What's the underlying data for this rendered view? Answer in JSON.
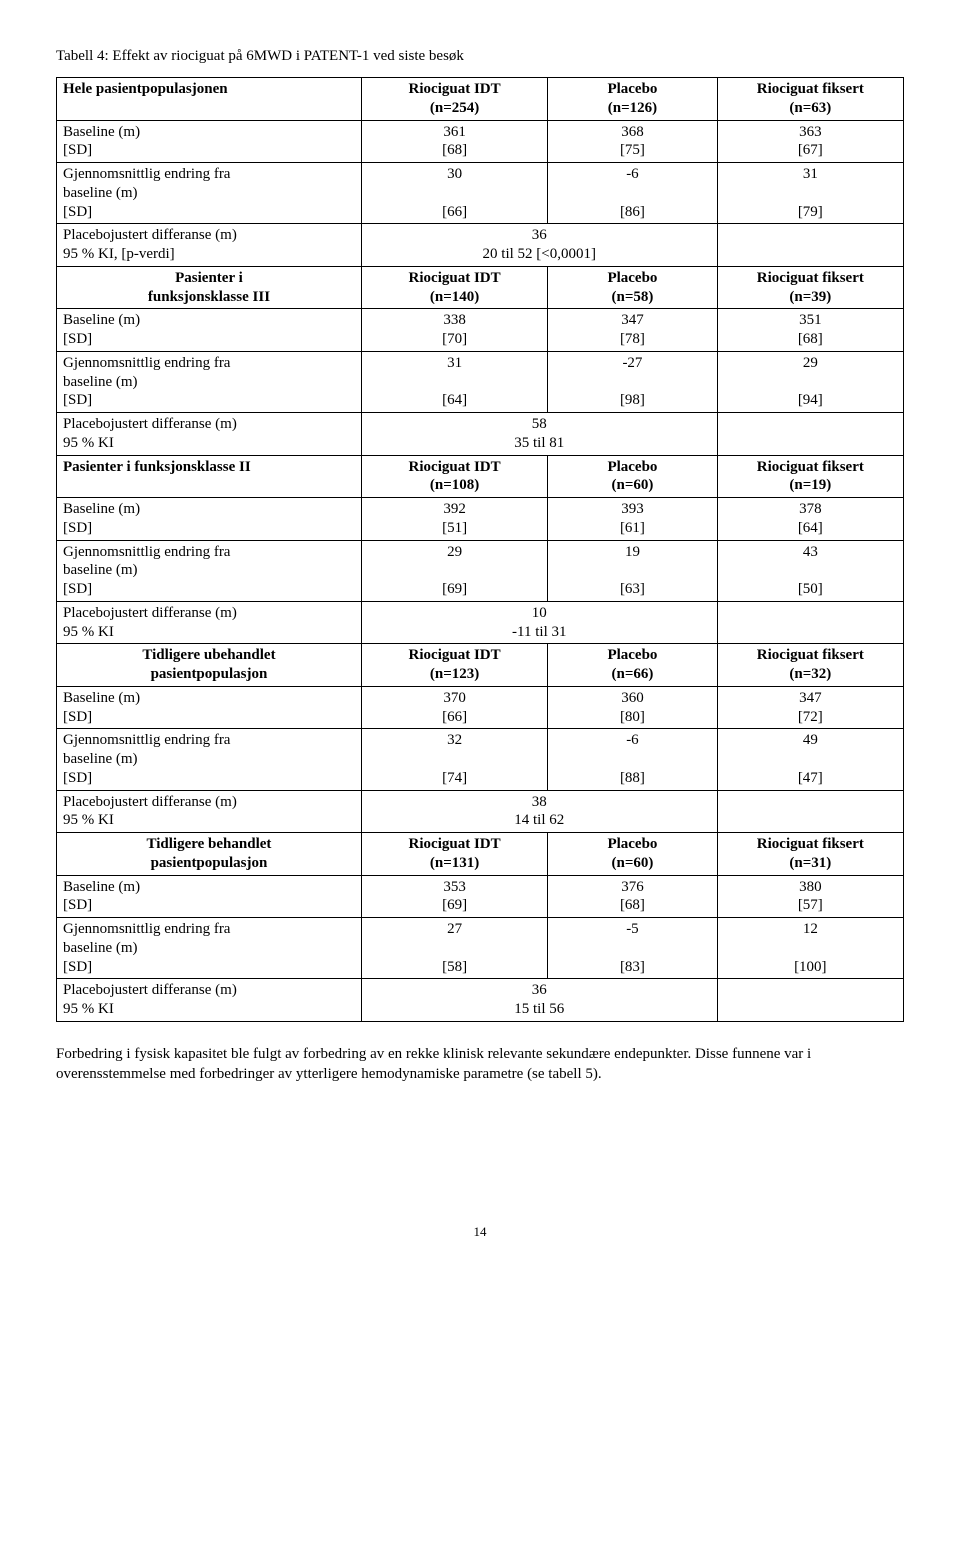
{
  "title": "Tabell 4: Effekt av riociguat på 6MWD i PATENT-1 ved siste besøk",
  "sections": [
    {
      "header": {
        "label": "Hele pasientpopulasjonen",
        "labelBold": true,
        "labelCenter": false,
        "c1_a": "Riociguat IDT",
        "c1_b": "(n=254)",
        "c2_a": "Placebo",
        "c2_b": "(n=126)",
        "c3_a": "Riociguat fiksert",
        "c3_b": "(n=63)"
      },
      "baseline": {
        "label_a": "Baseline (m)",
        "label_b": "[SD]",
        "c1_a": "361",
        "c1_b": "[68]",
        "c2_a": "368",
        "c2_b": "[75]",
        "c3_a": "363",
        "c3_b": "[67]"
      },
      "change": {
        "label_a": "Gjennomsnittlig endring fra",
        "label_b": "baseline (m)",
        "label_c": "[SD]",
        "c1_a": "30",
        "c1_b": "[66]",
        "c2_a": "-6",
        "c2_b": "[86]",
        "c3_a": "31",
        "c3_b": "[79]"
      },
      "diff": {
        "label_a": "Placebojustert differanse (m)",
        "label_b": "95 % KI, [p-verdi]",
        "m_a": "36",
        "m_b": "20 til 52 [<0,0001]"
      }
    },
    {
      "header": {
        "label_a": "Pasienter i",
        "label_b": "funksjonsklasse III",
        "labelBold": true,
        "labelCenter": true,
        "c1_a": "Riociguat IDT",
        "c1_b": "(n=140)",
        "c2_a": "Placebo",
        "c2_b": "(n=58)",
        "c3_a": "Riociguat fiksert",
        "c3_b": "(n=39)"
      },
      "baseline": {
        "label_a": "Baseline (m)",
        "label_b": "[SD]",
        "c1_a": "338",
        "c1_b": "[70]",
        "c2_a": "347",
        "c2_b": "[78]",
        "c3_a": "351",
        "c3_b": "[68]"
      },
      "change": {
        "label_a": "Gjennomsnittlig endring fra",
        "label_b": "baseline (m)",
        "label_c": "[SD]",
        "c1_a": "31",
        "c1_b": "[64]",
        "c2_a": "-27",
        "c2_b": "[98]",
        "c3_a": "29",
        "c3_b": "[94]"
      },
      "diff": {
        "label_a": "Placebojustert differanse (m)",
        "label_b": "95 % KI",
        "m_a": "58",
        "m_b": "35 til 81"
      }
    },
    {
      "header": {
        "label": "Pasienter i funksjonsklasse II",
        "labelBold": true,
        "labelCenter": false,
        "c1_a": "Riociguat IDT",
        "c1_b": "(n=108)",
        "c2_a": "Placebo",
        "c2_b": "(n=60)",
        "c3_a": "Riociguat fiksert",
        "c3_b": "(n=19)"
      },
      "baseline": {
        "label_a": "Baseline (m)",
        "label_b": "[SD]",
        "c1_a": "392",
        "c1_b": "[51]",
        "c2_a": "393",
        "c2_b": "[61]",
        "c3_a": "378",
        "c3_b": "[64]"
      },
      "change": {
        "label_a": "Gjennomsnittlig endring fra",
        "label_b": "baseline (m)",
        "label_c": "[SD]",
        "c1_a": "29",
        "c1_b": "[69]",
        "c2_a": "19",
        "c2_b": "[63]",
        "c3_a": "43",
        "c3_b": "[50]"
      },
      "diff": {
        "label_a": "Placebojustert differanse (m)",
        "label_b": "95 % KI",
        "m_a": "10",
        "m_b": "-11 til 31"
      }
    },
    {
      "header": {
        "label_a": "Tidligere ubehandlet",
        "label_b": "pasientpopulasjon",
        "labelBold": true,
        "labelCenter": true,
        "c1_a": "Riociguat IDT",
        "c1_b": "(n=123)",
        "c2_a": "Placebo",
        "c2_b": "(n=66)",
        "c3_a": "Riociguat fiksert",
        "c3_b": "(n=32)"
      },
      "baseline": {
        "label_a": "Baseline (m)",
        "label_b": "[SD]",
        "c1_a": "370",
        "c1_b": "[66]",
        "c2_a": "360",
        "c2_b": "[80]",
        "c3_a": "347",
        "c3_b": "[72]"
      },
      "change": {
        "label_a": "Gjennomsnittlig endring fra",
        "label_b": "baseline (m)",
        "label_c": "[SD]",
        "c1_a": "32",
        "c1_b": "[74]",
        "c2_a": "-6",
        "c2_b": "[88]",
        "c3_a": "49",
        "c3_b": "[47]"
      },
      "diff": {
        "label_a": "Placebojustert differanse (m)",
        "label_b": "95 % KI",
        "m_a": "38",
        "m_b": "14 til 62"
      }
    },
    {
      "header": {
        "label_a": "Tidligere behandlet",
        "label_b": "pasientpopulasjon",
        "labelBold": true,
        "labelCenter": true,
        "c1_a": "Riociguat IDT",
        "c1_b": "(n=131)",
        "c2_a": "Placebo",
        "c2_b": "(n=60)",
        "c3_a": "Riociguat fiksert",
        "c3_b": "(n=31)"
      },
      "baseline": {
        "label_a": "Baseline (m)",
        "label_b": "[SD]",
        "c1_a": "353",
        "c1_b": "[69]",
        "c2_a": "376",
        "c2_b": "[68]",
        "c3_a": "380",
        "c3_b": "[57]"
      },
      "change": {
        "label_a": "Gjennomsnittlig endring fra",
        "label_b": "baseline (m)",
        "label_c": "[SD]",
        "c1_a": "27",
        "c1_b": "[58]",
        "c2_a": "-5",
        "c2_b": "[83]",
        "c3_a": "12",
        "c3_b": "[100]"
      },
      "diff": {
        "label_a": "Placebojustert differanse (m)",
        "label_b": "95 % KI",
        "m_a": "36",
        "m_b": "15 til 56"
      }
    }
  ],
  "footer": "Forbedring i fysisk kapasitet ble fulgt av forbedring av en rekke klinisk relevante sekundære endepunkter. Disse funnene var i overensstemmelse med forbedringer av ytterligere hemodynamiske parametre (se tabell 5).",
  "pageNumber": "14"
}
